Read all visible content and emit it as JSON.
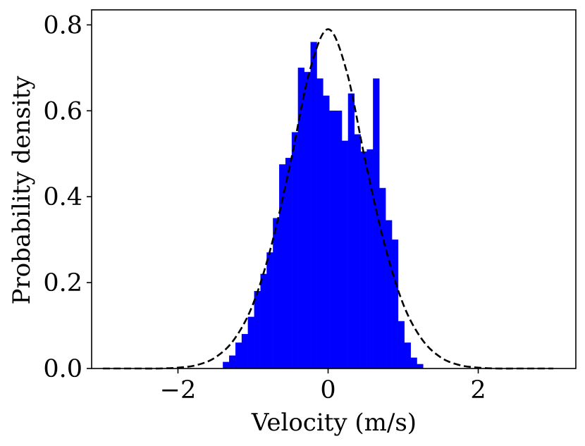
{
  "chart_data": {
    "type": "bar",
    "xlabel": "Velocity (m/s)",
    "ylabel": "Probability density",
    "xlim": [
      -3.15,
      3.3
    ],
    "ylim": [
      0,
      0.835
    ],
    "grid": false,
    "bar_color": "#0000ff",
    "curve_color": "#000000",
    "x_ticks": [
      {
        "value": -2,
        "label": "−2"
      },
      {
        "value": 0,
        "label": "0"
      },
      {
        "value": 2,
        "label": "2"
      }
    ],
    "y_ticks": [
      {
        "value": 0.0,
        "label": "0.0"
      },
      {
        "value": 0.2,
        "label": "0.2"
      },
      {
        "value": 0.4,
        "label": "0.4"
      },
      {
        "value": 0.6,
        "label": "0.6"
      },
      {
        "value": 0.8,
        "label": "0.8"
      }
    ],
    "histogram": {
      "bin_width": 0.0833,
      "bin_starts": [
        -1.4,
        -1.317,
        -1.233,
        -1.15,
        -1.067,
        -0.983,
        -0.9,
        -0.817,
        -0.733,
        -0.65,
        -0.567,
        -0.483,
        -0.4,
        -0.317,
        -0.233,
        -0.15,
        -0.067,
        0.017,
        0.1,
        0.183,
        0.267,
        0.35,
        0.433,
        0.517,
        0.6,
        0.683,
        0.767,
        0.85,
        0.933,
        1.017,
        1.1,
        1.183
      ],
      "values": [
        0.015,
        0.03,
        0.06,
        0.08,
        0.12,
        0.18,
        0.22,
        0.27,
        0.35,
        0.475,
        0.49,
        0.55,
        0.7,
        0.69,
        0.76,
        0.675,
        0.635,
        0.6,
        0.6,
        0.53,
        0.64,
        0.545,
        0.505,
        0.51,
        0.675,
        0.42,
        0.345,
        0.3,
        0.11,
        0.06,
        0.025,
        0.01
      ]
    },
    "curve": {
      "style": "dashed",
      "x": [
        -3.0,
        -2.75,
        -2.5,
        -2.25,
        -2.0,
        -1.75,
        -1.5,
        -1.25,
        -1.0,
        -0.75,
        -0.5,
        -0.25,
        0.0,
        0.25,
        0.5,
        0.75,
        1.0,
        1.25,
        1.5,
        1.75,
        2.0,
        2.25,
        2.5,
        2.75,
        3.0
      ],
      "y": [
        0.0,
        0.0,
        0.0,
        0.0,
        0.002,
        0.008,
        0.026,
        0.068,
        0.15,
        0.29,
        0.48,
        0.69,
        0.79,
        0.69,
        0.48,
        0.29,
        0.15,
        0.068,
        0.026,
        0.008,
        0.002,
        0.0,
        0.0,
        0.0,
        0.0
      ]
    }
  }
}
